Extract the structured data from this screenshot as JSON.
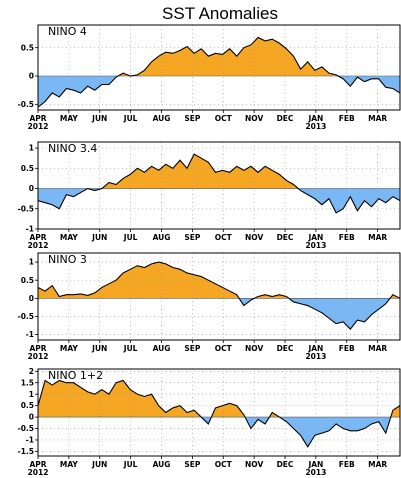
{
  "figure": {
    "title": "SST Anomalies"
  },
  "chart_data": [
    {
      "type": "area",
      "title": "NINO 4",
      "ylim": [
        -0.6,
        0.9
      ],
      "yticks": [
        -0.5,
        0,
        0.5
      ],
      "ytick_labels": [
        "-0.5",
        "0",
        "0.5"
      ],
      "x_labels": [
        "APR",
        "MAY",
        "JUN",
        "JUL",
        "AUG",
        "SEP",
        "OCT",
        "NOV",
        "DEC",
        "JAN",
        "FEB",
        "MAR"
      ],
      "x_year_labels": [
        {
          "index": 0,
          "text": "2012"
        },
        {
          "index": 9,
          "text": "2013"
        }
      ],
      "positive_color": "#f5a623",
      "negative_color": "#7ab8f5",
      "x_weeks": [
        0,
        1,
        2,
        3,
        4,
        5,
        6,
        7,
        8,
        9,
        10,
        11,
        12,
        13,
        14,
        15,
        16,
        17,
        18,
        19,
        20,
        21,
        22,
        23,
        24,
        25,
        26,
        27,
        28,
        29,
        30,
        31,
        32,
        33,
        34,
        35,
        36,
        37,
        38,
        39,
        40,
        41,
        42,
        43,
        44,
        45,
        46,
        47,
        48,
        49,
        50,
        51
      ],
      "values": [
        -0.55,
        -0.45,
        -0.3,
        -0.37,
        -0.22,
        -0.25,
        -0.3,
        -0.18,
        -0.25,
        -0.15,
        -0.15,
        -0.02,
        0.05,
        0.0,
        0.02,
        0.1,
        0.25,
        0.35,
        0.42,
        0.4,
        0.45,
        0.52,
        0.4,
        0.48,
        0.35,
        0.4,
        0.38,
        0.48,
        0.35,
        0.5,
        0.55,
        0.68,
        0.62,
        0.65,
        0.58,
        0.48,
        0.35,
        0.12,
        0.25,
        0.1,
        0.16,
        0.05,
        0.02,
        -0.05,
        -0.18,
        -0.02,
        -0.1,
        -0.05,
        -0.05,
        -0.2,
        -0.22,
        -0.3
      ]
    },
    {
      "type": "area",
      "title": "NINO 3.4",
      "ylim": [
        -1.0,
        1.15
      ],
      "yticks": [
        -1,
        -0.5,
        0,
        0.5,
        1
      ],
      "ytick_labels": [
        "-1",
        "-0.5",
        "0",
        "0.5",
        "1"
      ],
      "x_labels": [
        "APR",
        "MAY",
        "JUN",
        "JUL",
        "AUG",
        "SEP",
        "OCT",
        "NOV",
        "DEC",
        "JAN",
        "FEB",
        "MAR"
      ],
      "x_year_labels": [
        {
          "index": 0,
          "text": "2012"
        },
        {
          "index": 9,
          "text": "2013"
        }
      ],
      "positive_color": "#f5a623",
      "negative_color": "#7ab8f5",
      "x_weeks": [
        0,
        1,
        2,
        3,
        4,
        5,
        6,
        7,
        8,
        9,
        10,
        11,
        12,
        13,
        14,
        15,
        16,
        17,
        18,
        19,
        20,
        21,
        22,
        23,
        24,
        25,
        26,
        27,
        28,
        29,
        30,
        31,
        32,
        33,
        34,
        35,
        36,
        37,
        38,
        39,
        40,
        41,
        42,
        43,
        44,
        45,
        46,
        47,
        48,
        49,
        50,
        51
      ],
      "values": [
        -0.3,
        -0.35,
        -0.4,
        -0.5,
        -0.15,
        -0.2,
        -0.1,
        0.0,
        -0.05,
        0.0,
        0.15,
        0.1,
        0.25,
        0.35,
        0.5,
        0.4,
        0.55,
        0.45,
        0.6,
        0.5,
        0.7,
        0.5,
        0.85,
        0.75,
        0.65,
        0.4,
        0.45,
        0.4,
        0.55,
        0.45,
        0.55,
        0.4,
        0.55,
        0.45,
        0.35,
        0.2,
        0.1,
        -0.05,
        -0.15,
        -0.25,
        -0.4,
        -0.25,
        -0.6,
        -0.5,
        -0.2,
        -0.55,
        -0.3,
        -0.45,
        -0.25,
        -0.35,
        -0.2,
        -0.3
      ]
    },
    {
      "type": "area",
      "title": "NINO 3",
      "ylim": [
        -1.15,
        1.25
      ],
      "yticks": [
        -1,
        -0.5,
        0,
        0.5,
        1
      ],
      "ytick_labels": [
        "-1",
        "-0.5",
        "0",
        "0.5",
        "1"
      ],
      "x_labels": [
        "APR",
        "MAY",
        "JUN",
        "JUL",
        "AUG",
        "SEP",
        "OCT",
        "NOV",
        "DEC",
        "JAN",
        "FEB",
        "MAR"
      ],
      "x_year_labels": [
        {
          "index": 0,
          "text": "2012"
        },
        {
          "index": 9,
          "text": "2013"
        }
      ],
      "positive_color": "#f5a623",
      "negative_color": "#7ab8f5",
      "x_weeks": [
        0,
        1,
        2,
        3,
        4,
        5,
        6,
        7,
        8,
        9,
        10,
        11,
        12,
        13,
        14,
        15,
        16,
        17,
        18,
        19,
        20,
        21,
        22,
        23,
        24,
        25,
        26,
        27,
        28,
        29,
        30,
        31,
        32,
        33,
        34,
        35,
        36,
        37,
        38,
        39,
        40,
        41,
        42,
        43,
        44,
        45,
        46,
        47,
        48,
        49,
        50,
        51
      ],
      "values": [
        0.3,
        0.2,
        0.35,
        0.05,
        0.1,
        0.1,
        0.12,
        0.08,
        0.15,
        0.3,
        0.4,
        0.5,
        0.7,
        0.8,
        0.9,
        0.85,
        0.95,
        1.0,
        0.95,
        0.85,
        0.8,
        0.7,
        0.65,
        0.6,
        0.5,
        0.4,
        0.3,
        0.2,
        0.1,
        -0.2,
        -0.05,
        0.05,
        0.1,
        0.05,
        0.1,
        0.05,
        -0.1,
        -0.15,
        -0.2,
        -0.3,
        -0.4,
        -0.55,
        -0.7,
        -0.65,
        -0.85,
        -0.6,
        -0.65,
        -0.45,
        -0.3,
        -0.15,
        0.1,
        0.0
      ]
    },
    {
      "type": "area",
      "title": "NINO 1+2",
      "ylim": [
        -1.7,
        2.1
      ],
      "yticks": [
        -1.5,
        -1,
        -0.5,
        0,
        0.5,
        1,
        1.5,
        2
      ],
      "ytick_labels": [
        "-1.5",
        "-1",
        "-0.5",
        "0",
        "0.5",
        "1",
        "1.5",
        "2"
      ],
      "x_labels": [
        "APR",
        "MAY",
        "JUN",
        "JUL",
        "AUG",
        "SEP",
        "OCT",
        "NOV",
        "DEC",
        "JAN",
        "FEB",
        "MAR"
      ],
      "x_year_labels": [
        {
          "index": 0,
          "text": "2012"
        },
        {
          "index": 9,
          "text": "2013"
        }
      ],
      "positive_color": "#f5a623",
      "negative_color": "#7ab8f5",
      "x_weeks": [
        0,
        1,
        2,
        3,
        4,
        5,
        6,
        7,
        8,
        9,
        10,
        11,
        12,
        13,
        14,
        15,
        16,
        17,
        18,
        19,
        20,
        21,
        22,
        23,
        24,
        25,
        26,
        27,
        28,
        29,
        30,
        31,
        32,
        33,
        34,
        35,
        36,
        37,
        38,
        39,
        40,
        41,
        42,
        43,
        44,
        45,
        46,
        47,
        48,
        49,
        50,
        51
      ],
      "values": [
        0.5,
        1.6,
        1.4,
        1.6,
        1.5,
        1.5,
        1.3,
        1.1,
        1.0,
        1.2,
        1.0,
        1.5,
        1.6,
        1.2,
        1.0,
        0.9,
        1.0,
        0.5,
        0.2,
        0.4,
        0.5,
        0.2,
        0.3,
        0.0,
        -0.3,
        0.4,
        0.5,
        0.6,
        0.5,
        0.1,
        -0.5,
        -0.1,
        -0.3,
        0.2,
        0.0,
        -0.2,
        -0.5,
        -0.8,
        -1.3,
        -0.8,
        -0.7,
        -0.6,
        -0.3,
        -0.5,
        -0.6,
        -0.6,
        -0.5,
        -0.3,
        -0.2,
        -0.7,
        0.3,
        0.5
      ]
    }
  ]
}
